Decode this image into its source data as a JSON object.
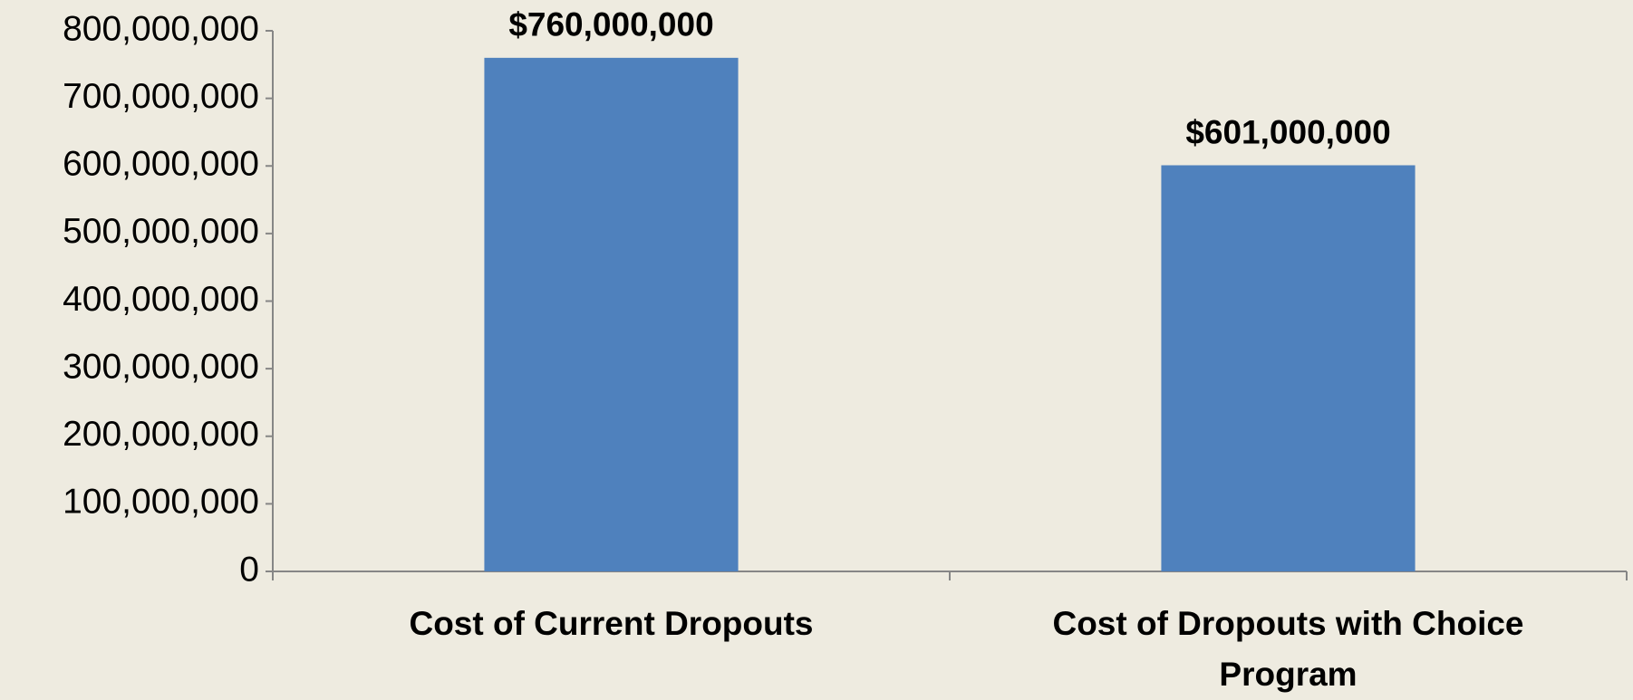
{
  "chart_data": {
    "type": "bar",
    "categories": [
      "Cost of Current Dropouts",
      "Cost of Dropouts with Choice Program"
    ],
    "values": [
      760000000,
      601000000
    ],
    "value_labels": [
      "$760,000,000",
      "$601,000,000"
    ],
    "color": "#4f81bd",
    "ylim": [
      0,
      800000000
    ],
    "yticks": [
      0,
      {
        "value": 100000000,
        "label": "100,000,000"
      },
      {
        "value": 200000000,
        "label": "200,000,000"
      },
      {
        "value": 300000000,
        "label": "300,000,000"
      },
      {
        "value": 400000000,
        "label": "400,000,000"
      },
      {
        "value": 500000000,
        "label": "500,000,000"
      },
      {
        "value": 600000000,
        "label": "600,000,000"
      },
      {
        "value": 700000000,
        "label": "700,000,000"
      },
      {
        "value": 800000000,
        "label": "800,000,000"
      }
    ]
  }
}
